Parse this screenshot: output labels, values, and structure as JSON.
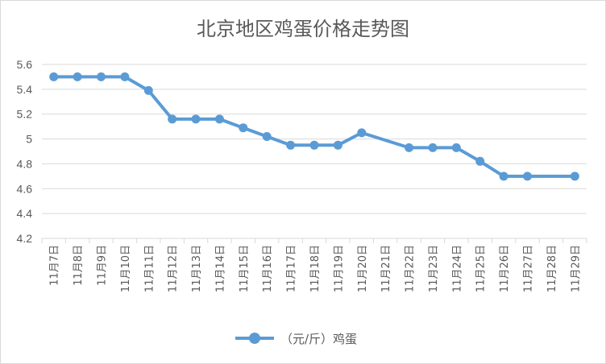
{
  "chart_data": {
    "type": "line",
    "title": "北京地区鸡蛋价格走势图",
    "categories": [
      "11月7日",
      "11月8日",
      "11月9日",
      "11月10日",
      "11月11日",
      "11月12日",
      "11月13日",
      "11月14日",
      "11月15日",
      "11月16日",
      "11月17日",
      "11月18日",
      "11月19日",
      "11月20日",
      "11月21日",
      "11月22日",
      "11月23日",
      "11月24日",
      "11月25日",
      "11月26日",
      "11月27日",
      "11月28日",
      "11月29日"
    ],
    "series": [
      {
        "name": "（元/斤）鸡蛋",
        "values": [
          5.5,
          5.5,
          5.5,
          5.5,
          5.39,
          5.16,
          5.16,
          5.16,
          5.09,
          5.02,
          4.95,
          4.95,
          4.95,
          5.05,
          null,
          4.93,
          4.93,
          4.93,
          4.82,
          4.7,
          4.7,
          null,
          4.7
        ],
        "color": "#5b9bd5"
      }
    ],
    "yticks": [
      "4.2",
      "4.4",
      "4.6",
      "4.8",
      "5",
      "5.2",
      "5.4",
      "5.6"
    ],
    "ylim": [
      4.2,
      5.6
    ],
    "grid": true,
    "legend_position": "bottom"
  }
}
